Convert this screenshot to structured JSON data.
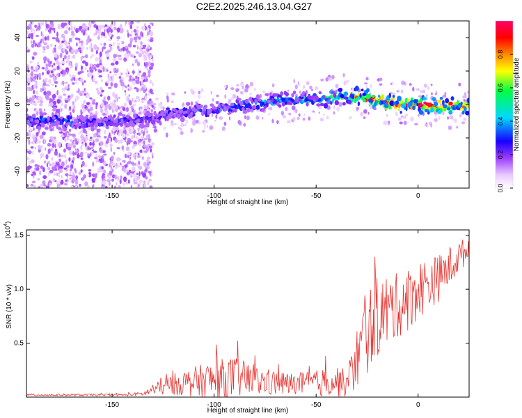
{
  "title": "C2E2.2025.246.13.04.G27",
  "colors": {
    "snr_line": "#e8322e",
    "colormap": [
      "#ffffff",
      "#e9c8ff",
      "#9b3cff",
      "#1800ff",
      "#00d8ff",
      "#00ff44",
      "#ffff00",
      "#ff8800",
      "#ff0000",
      "#ff0066"
    ]
  },
  "chart_data": [
    {
      "type": "heatmap",
      "xlabel": "Height of straight line (km)",
      "ylabel": "Frequency (Hz)",
      "xlim": [
        -192,
        25
      ],
      "ylim": [
        -50,
        50
      ],
      "xticks": [
        -150,
        -100,
        -50,
        0
      ],
      "yticks": [
        -40,
        -20,
        0,
        20,
        40
      ],
      "grid": false,
      "colorbar": {
        "label": "Normalized spectral amplitude",
        "range": [
          0,
          1
        ],
        "ticks": [
          "0.0",
          "0.2",
          "0.4",
          "0.6",
          "0.8"
        ],
        "tick_values": [
          0,
          0.2,
          0.4,
          0.6,
          0.8
        ]
      },
      "ridge": {
        "x": [
          -192,
          -175,
          -160,
          -150,
          -140,
          -130,
          -120,
          -110,
          -100,
          -90,
          -80,
          -70,
          -60,
          -50,
          -40,
          -30,
          -20,
          -15,
          -10,
          0,
          10,
          25
        ],
        "frequency": [
          -10,
          -10,
          -11,
          -10,
          -9,
          -8,
          -5,
          -4,
          -3,
          -1,
          1,
          2,
          3,
          3,
          5,
          5,
          3,
          1,
          0,
          0,
          -1,
          -1
        ],
        "amplitude": [
          0.35,
          0.38,
          0.3,
          0.32,
          0.28,
          0.3,
          0.3,
          0.35,
          0.35,
          0.38,
          0.42,
          0.45,
          0.45,
          0.48,
          0.6,
          0.8,
          0.9,
          0.92,
          0.95,
          0.95,
          0.95,
          0.95
        ]
      },
      "noise_region_x": [
        -192,
        -130
      ]
    },
    {
      "type": "line",
      "xlabel": "Height of straight line (km)",
      "ylabel": "SNR (10 * v/v)",
      "y_multiplier_label": "(x10",
      "y_multiplier_exp": "4",
      "y_multiplier_close": ")",
      "xlim": [
        -192,
        25
      ],
      "ylim": [
        0,
        1.55
      ],
      "xticks": [
        -150,
        -100,
        -50,
        0
      ],
      "yticks": [
        0.5,
        1.0,
        1.5
      ],
      "ytick_labels": [
        "0.5",
        "1.0",
        "1.5"
      ],
      "grid": false,
      "series": [
        {
          "envelope_x": [
            -192,
            -185,
            -175,
            -165,
            -155,
            -145,
            -135,
            -128,
            -120,
            -110,
            -100,
            -90,
            -80,
            -70,
            -60,
            -50,
            -40,
            -35,
            -30,
            -25,
            -20,
            -15,
            -10,
            -5,
            0,
            5,
            10,
            15,
            20,
            25
          ],
          "envelope_mean": [
            0.02,
            0.02,
            0.02,
            0.02,
            0.02,
            0.02,
            0.03,
            0.08,
            0.12,
            0.14,
            0.16,
            0.18,
            0.15,
            0.13,
            0.12,
            0.13,
            0.15,
            0.12,
            0.35,
            0.6,
            0.75,
            0.8,
            0.85,
            0.9,
            1.0,
            1.05,
            1.1,
            1.2,
            1.3,
            1.38
          ],
          "envelope_amp": [
            0.01,
            0.01,
            0.01,
            0.01,
            0.01,
            0.01,
            0.02,
            0.06,
            0.1,
            0.14,
            0.18,
            0.2,
            0.14,
            0.12,
            0.1,
            0.12,
            0.16,
            0.12,
            0.3,
            0.4,
            0.38,
            0.35,
            0.3,
            0.3,
            0.28,
            0.25,
            0.22,
            0.2,
            0.15,
            0.12
          ]
        }
      ]
    }
  ]
}
